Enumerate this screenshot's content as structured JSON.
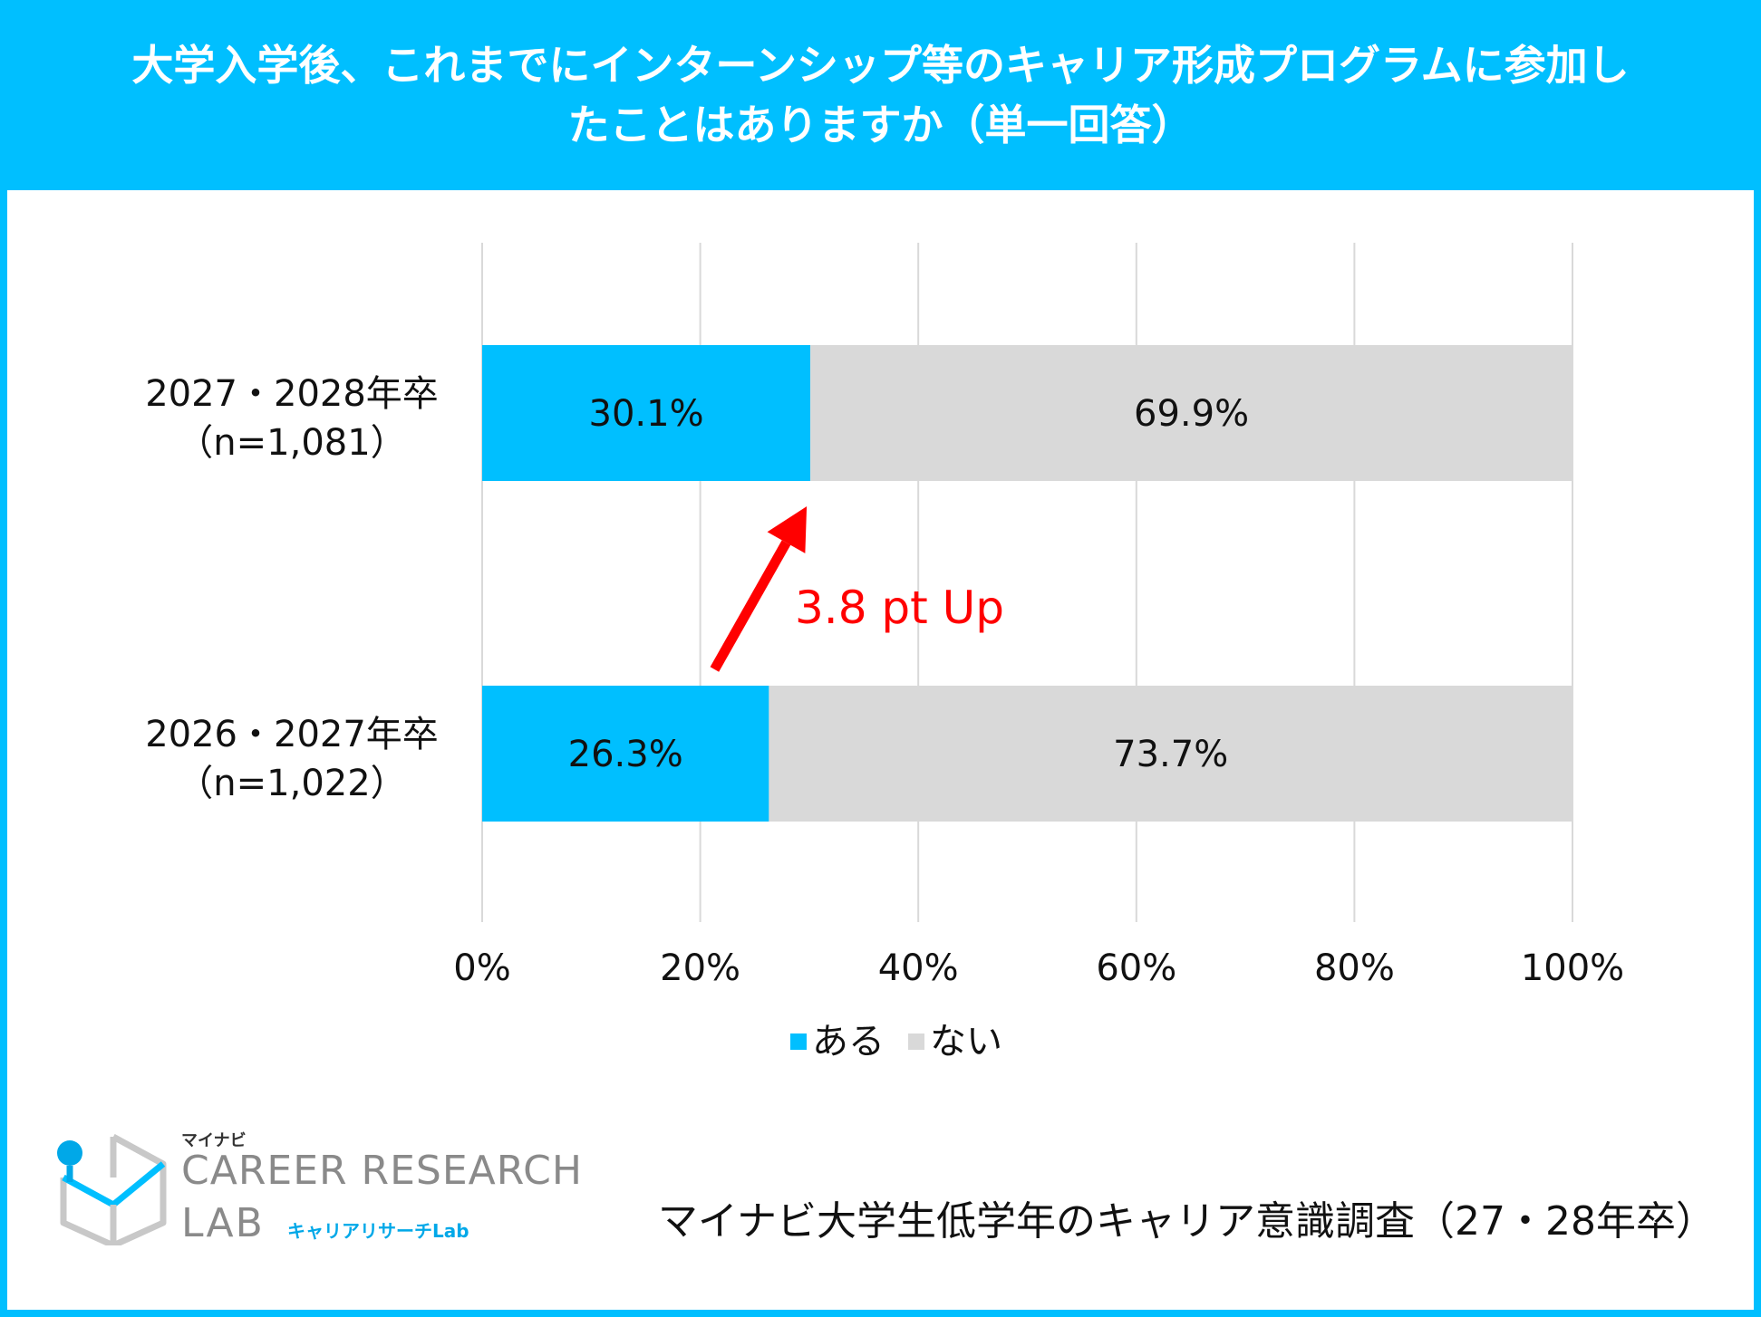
{
  "header": {
    "title": "大学入学後、これまでにインターンシップ等のキャリア形成プログラムに参加し\nたことはありますか（単一回答）"
  },
  "chart_data": {
    "type": "bar",
    "orientation": "horizontal",
    "stacked": true,
    "title": "大学入学後、これまでにインターンシップ等のキャリア形成プログラムに参加したことはありますか（単一回答）",
    "categories": [
      {
        "line1": "2027・2028年卒",
        "line2": "（n=1,081）"
      },
      {
        "line1": "2026・2027年卒",
        "line2": "（n=1,022）"
      }
    ],
    "series": [
      {
        "name": "ある",
        "color": "#00BFFF",
        "values": [
          30.1,
          26.3
        ],
        "labels": [
          "30.1%",
          "26.3%"
        ]
      },
      {
        "name": "ない",
        "color": "#D9D9D9",
        "values": [
          69.9,
          73.7
        ],
        "labels": [
          "69.9%",
          "73.7%"
        ]
      }
    ],
    "xlim": [
      0,
      100
    ],
    "xticks": [
      "0%",
      "20%",
      "40%",
      "60%",
      "80%",
      "100%"
    ],
    "grid": true,
    "legend_position": "bottom",
    "annotation": {
      "text": "3.8 pt Up",
      "color": "#FF0000"
    }
  },
  "footer": {
    "logo_small": "マイナビ",
    "logo_main": "CAREER RESEARCH",
    "logo_lab": "LAB",
    "logo_sub": "キャリアリサーチLab",
    "source": "マイナビ大学生低学年のキャリア意識調査（27・28年卒）"
  }
}
